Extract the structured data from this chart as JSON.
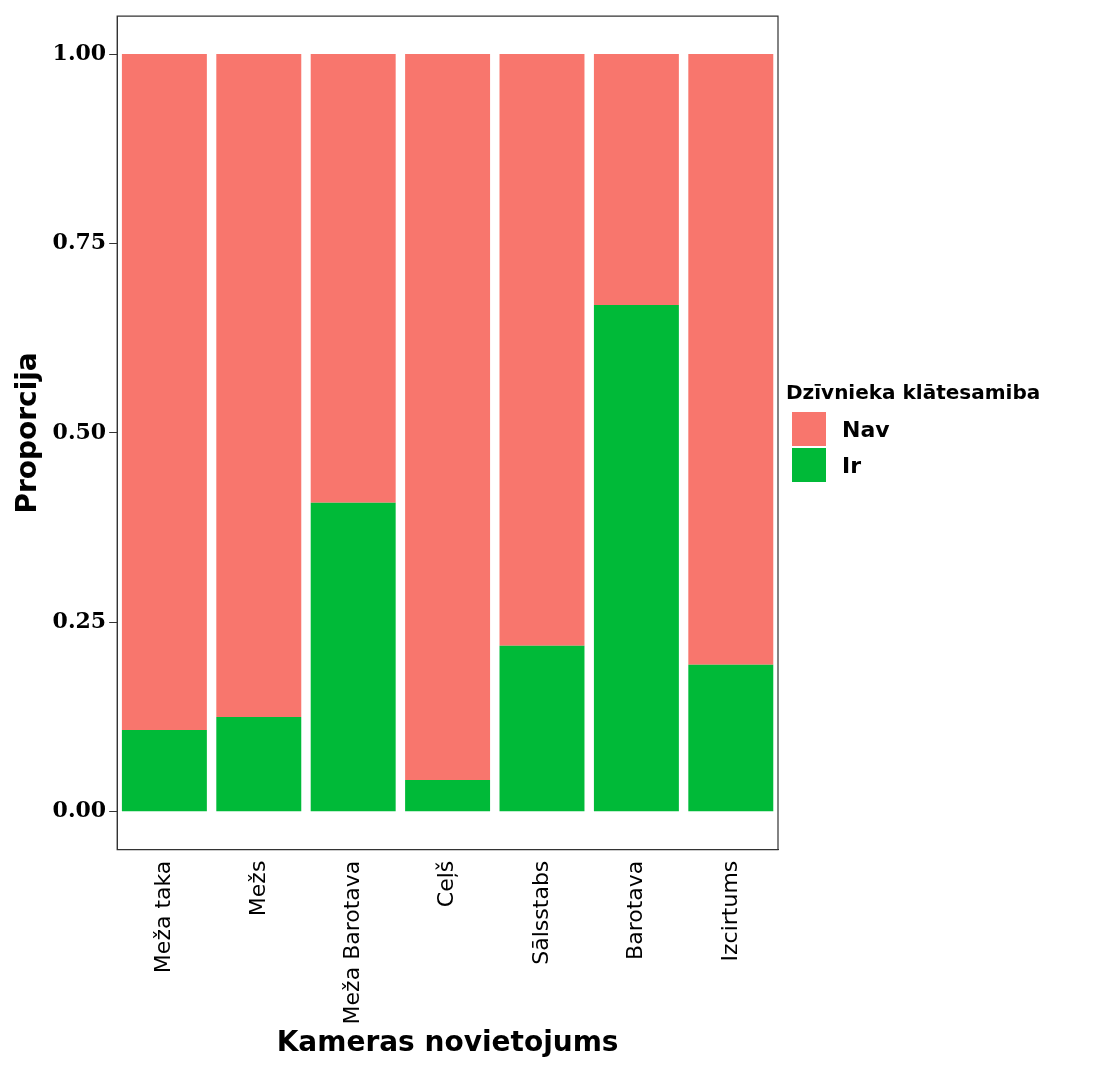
{
  "chart_data": {
    "type": "bar",
    "stacked": true,
    "xlabel": "Kameras novietojums",
    "ylabel": "Proporcija",
    "legend_title": "Dzīvnieka klātesamiba",
    "categories": [
      "Meža taka",
      "Mežs",
      "Meža Barotava",
      "Ceļš",
      "Sālsstabs",
      "Barotava",
      "Izcirtums"
    ],
    "series": [
      {
        "name": "Ir",
        "color": "#00ba38",
        "values": [
          0.108,
          0.125,
          0.408,
          0.042,
          0.219,
          0.669,
          0.194
        ]
      },
      {
        "name": "Nav",
        "color": "#f8766d",
        "values": [
          0.892,
          0.875,
          0.592,
          0.958,
          0.781,
          0.331,
          0.806
        ]
      }
    ],
    "ylim": [
      -0.05,
      1.05
    ],
    "yticks": [
      {
        "value": 0,
        "label": "0.00"
      },
      {
        "value": 0.25,
        "label": "0.25"
      },
      {
        "value": 0.5,
        "label": "0.50"
      },
      {
        "value": 0.75,
        "label": "0.75"
      },
      {
        "value": 1,
        "label": "1.00"
      }
    ],
    "grid": false,
    "legend": "right"
  }
}
